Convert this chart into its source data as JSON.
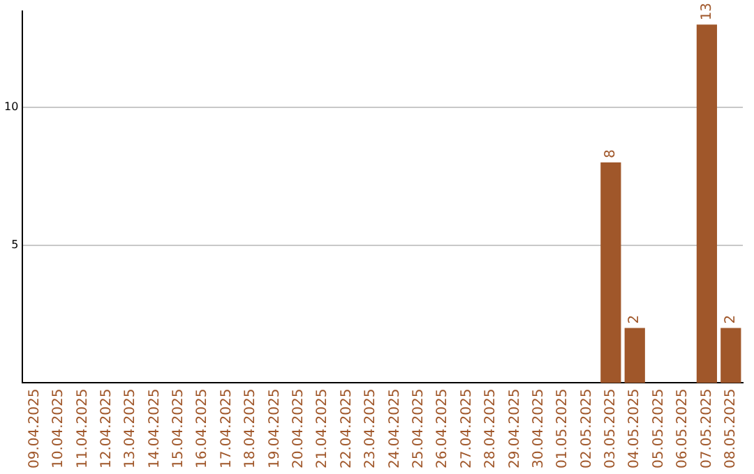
{
  "chart_data": {
    "type": "bar",
    "categories": [
      "09.04.2025",
      "10.04.2025",
      "11.04.2025",
      "12.04.2025",
      "13.04.2025",
      "14.04.2025",
      "15.04.2025",
      "16.04.2025",
      "17.04.2025",
      "18.04.2025",
      "19.04.2025",
      "20.04.2025",
      "21.04.2025",
      "22.04.2025",
      "23.04.2025",
      "24.04.2025",
      "25.04.2025",
      "26.04.2025",
      "27.04.2025",
      "28.04.2025",
      "29.04.2025",
      "30.04.2025",
      "01.05.2025",
      "02.05.2025",
      "03.05.2025",
      "04.05.2025",
      "05.05.2025",
      "06.05.2025",
      "07.05.2025",
      "08.05.2025"
    ],
    "values": [
      0,
      0,
      0,
      0,
      0,
      0,
      0,
      0,
      0,
      0,
      0,
      0,
      0,
      0,
      0,
      0,
      0,
      0,
      0,
      0,
      0,
      0,
      0,
      0,
      8,
      2,
      0,
      0,
      13,
      2
    ],
    "value_labels": [
      null,
      null,
      null,
      null,
      null,
      null,
      null,
      null,
      null,
      null,
      null,
      null,
      null,
      null,
      null,
      null,
      null,
      null,
      null,
      null,
      null,
      null,
      null,
      null,
      "8",
      "2",
      null,
      null,
      "13",
      "2"
    ],
    "color": "#a0572a",
    "ylim": [
      0,
      13.5
    ],
    "yticks": [
      5,
      10
    ],
    "grid": "y",
    "legend": false
  }
}
